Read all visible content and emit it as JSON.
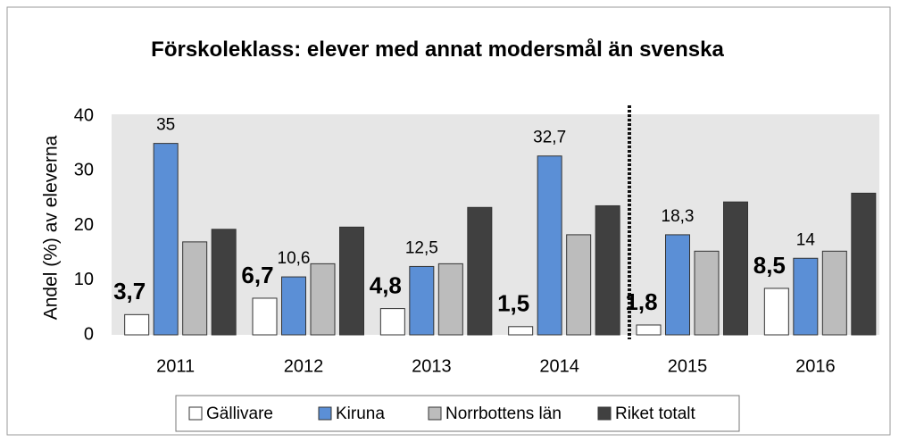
{
  "chart_data": {
    "type": "bar",
    "title": "Förskoleklass:  elever med annat modersmål än svenska",
    "y_label": "Andel (%)  av eleverna",
    "categories": [
      "2011",
      "2012",
      "2013",
      "2014",
      "2015",
      "2016"
    ],
    "series": [
      {
        "name": "Gällivare",
        "color": "#ffffff",
        "values": [
          3.7,
          6.7,
          4.8,
          1.5,
          1.8,
          8.5
        ],
        "value_labels": [
          "3,7",
          "6,7",
          "4,8",
          "1,5",
          "1,8",
          "8,5"
        ]
      },
      {
        "name": "Kiruna",
        "color": "#5b8fd6",
        "values": [
          35,
          10.6,
          12.5,
          32.7,
          18.3,
          14
        ],
        "value_labels": [
          "35",
          "10,6",
          "12,5",
          "32,7",
          "18,3",
          "14"
        ]
      },
      {
        "name": "Norrbottens län",
        "color": "#bcbcbc",
        "values": [
          17,
          13,
          13,
          18.3,
          15.3,
          15.3
        ]
      },
      {
        "name": "Riket totalt",
        "color": "#404040",
        "values": [
          19.3,
          19.7,
          23.3,
          23.6,
          24.3,
          25.9
        ]
      }
    ],
    "ylim": [
      0,
      40
    ],
    "yticks": [
      0,
      10,
      20,
      30,
      40
    ],
    "grid": false,
    "legend": "bottom"
  }
}
